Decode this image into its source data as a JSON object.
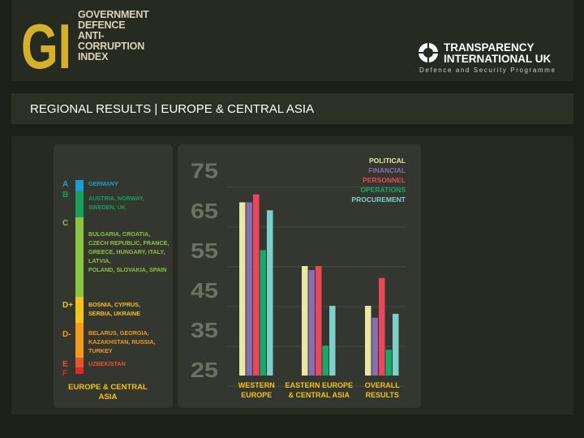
{
  "header": {
    "gi_letters": "GI",
    "gi_lines": [
      "GOVERNMENT",
      "DEFENCE",
      "ANTI-",
      "CORRUPTION",
      "INDEX"
    ],
    "ti_lines": [
      "TRANSPARENCY",
      "INTERNATIONAL UK"
    ],
    "ti_subtitle": "Defence and Security Programme"
  },
  "title": "REGIONAL RESULTS | EUROPE & CENTRAL ASIA",
  "grade_scale": {
    "grades": [
      {
        "grade": "A",
        "countries": [
          "GERMANY"
        ],
        "color": "#1e9bd0"
      },
      {
        "grade": "B",
        "countries": [
          "AUSTRIA, NORWAY,",
          "SWEDEN, UK"
        ],
        "color": "#18a05a"
      },
      {
        "grade": "C",
        "countries": [
          "BULGARIA, CROATIA,",
          "CZECH REPUBLIC, FRANCE,",
          "GREECE, HUNGARY, ITALY,",
          "LATVIA,",
          "POLAND, SLOVAKIA, SPAIN"
        ],
        "color": "#8bc43f"
      },
      {
        "grade": "D+",
        "countries": [
          "BOSNIA, CYPRUS,",
          "SERBIA, UKRAINE"
        ],
        "color": "#f4c21a"
      },
      {
        "grade": "D-",
        "countries": [
          "BELARUS, GEORGIA,",
          "KAZAKHSTAN, RUSSIA,",
          "TURKEY"
        ],
        "color": "#f39a1f"
      },
      {
        "grade": "E",
        "countries": [
          "UZBEKISTAN"
        ],
        "color": "#e8542d"
      },
      {
        "grade": "F",
        "countries": [],
        "color": "#d62c2c"
      }
    ],
    "footer": [
      "EUROPE & CENTRAL",
      "ASIA"
    ]
  },
  "chart_data": {
    "type": "bar",
    "categories": [
      "WESTERN EUROPE",
      "EASTERN EUROPE & CENTRAL ASIA",
      "OVERALL RESULTS"
    ],
    "category_labels": [
      [
        "WESTERN",
        "EUROPE"
      ],
      [
        "EASTERN EUROPE",
        "& CENTRAL ASIA"
      ],
      [
        "OVERALL",
        "RESULTS"
      ]
    ],
    "series": [
      {
        "name": "POLITICAL",
        "color": "#e7e8a6",
        "values": [
          66.5,
          50.5,
          40.5
        ]
      },
      {
        "name": "FINANCIAL",
        "color": "#8a6cb0",
        "values": [
          66.5,
          49.5,
          37.5
        ]
      },
      {
        "name": "PERSONNEL",
        "color": "#e9485c",
        "values": [
          68.5,
          50.5,
          47.5
        ]
      },
      {
        "name": "OPERATIONS",
        "color": "#1aa86a",
        "values": [
          54.5,
          30.5,
          29.5
        ]
      },
      {
        "name": "PROCUREMENT",
        "color": "#7dcfca",
        "values": [
          64.5,
          40.5,
          38.5
        ]
      }
    ],
    "ytick_labels": [
      "75",
      "65",
      "55",
      "45",
      "35",
      "25"
    ],
    "ylim": [
      23,
      78
    ],
    "legend_position": "top-right"
  }
}
